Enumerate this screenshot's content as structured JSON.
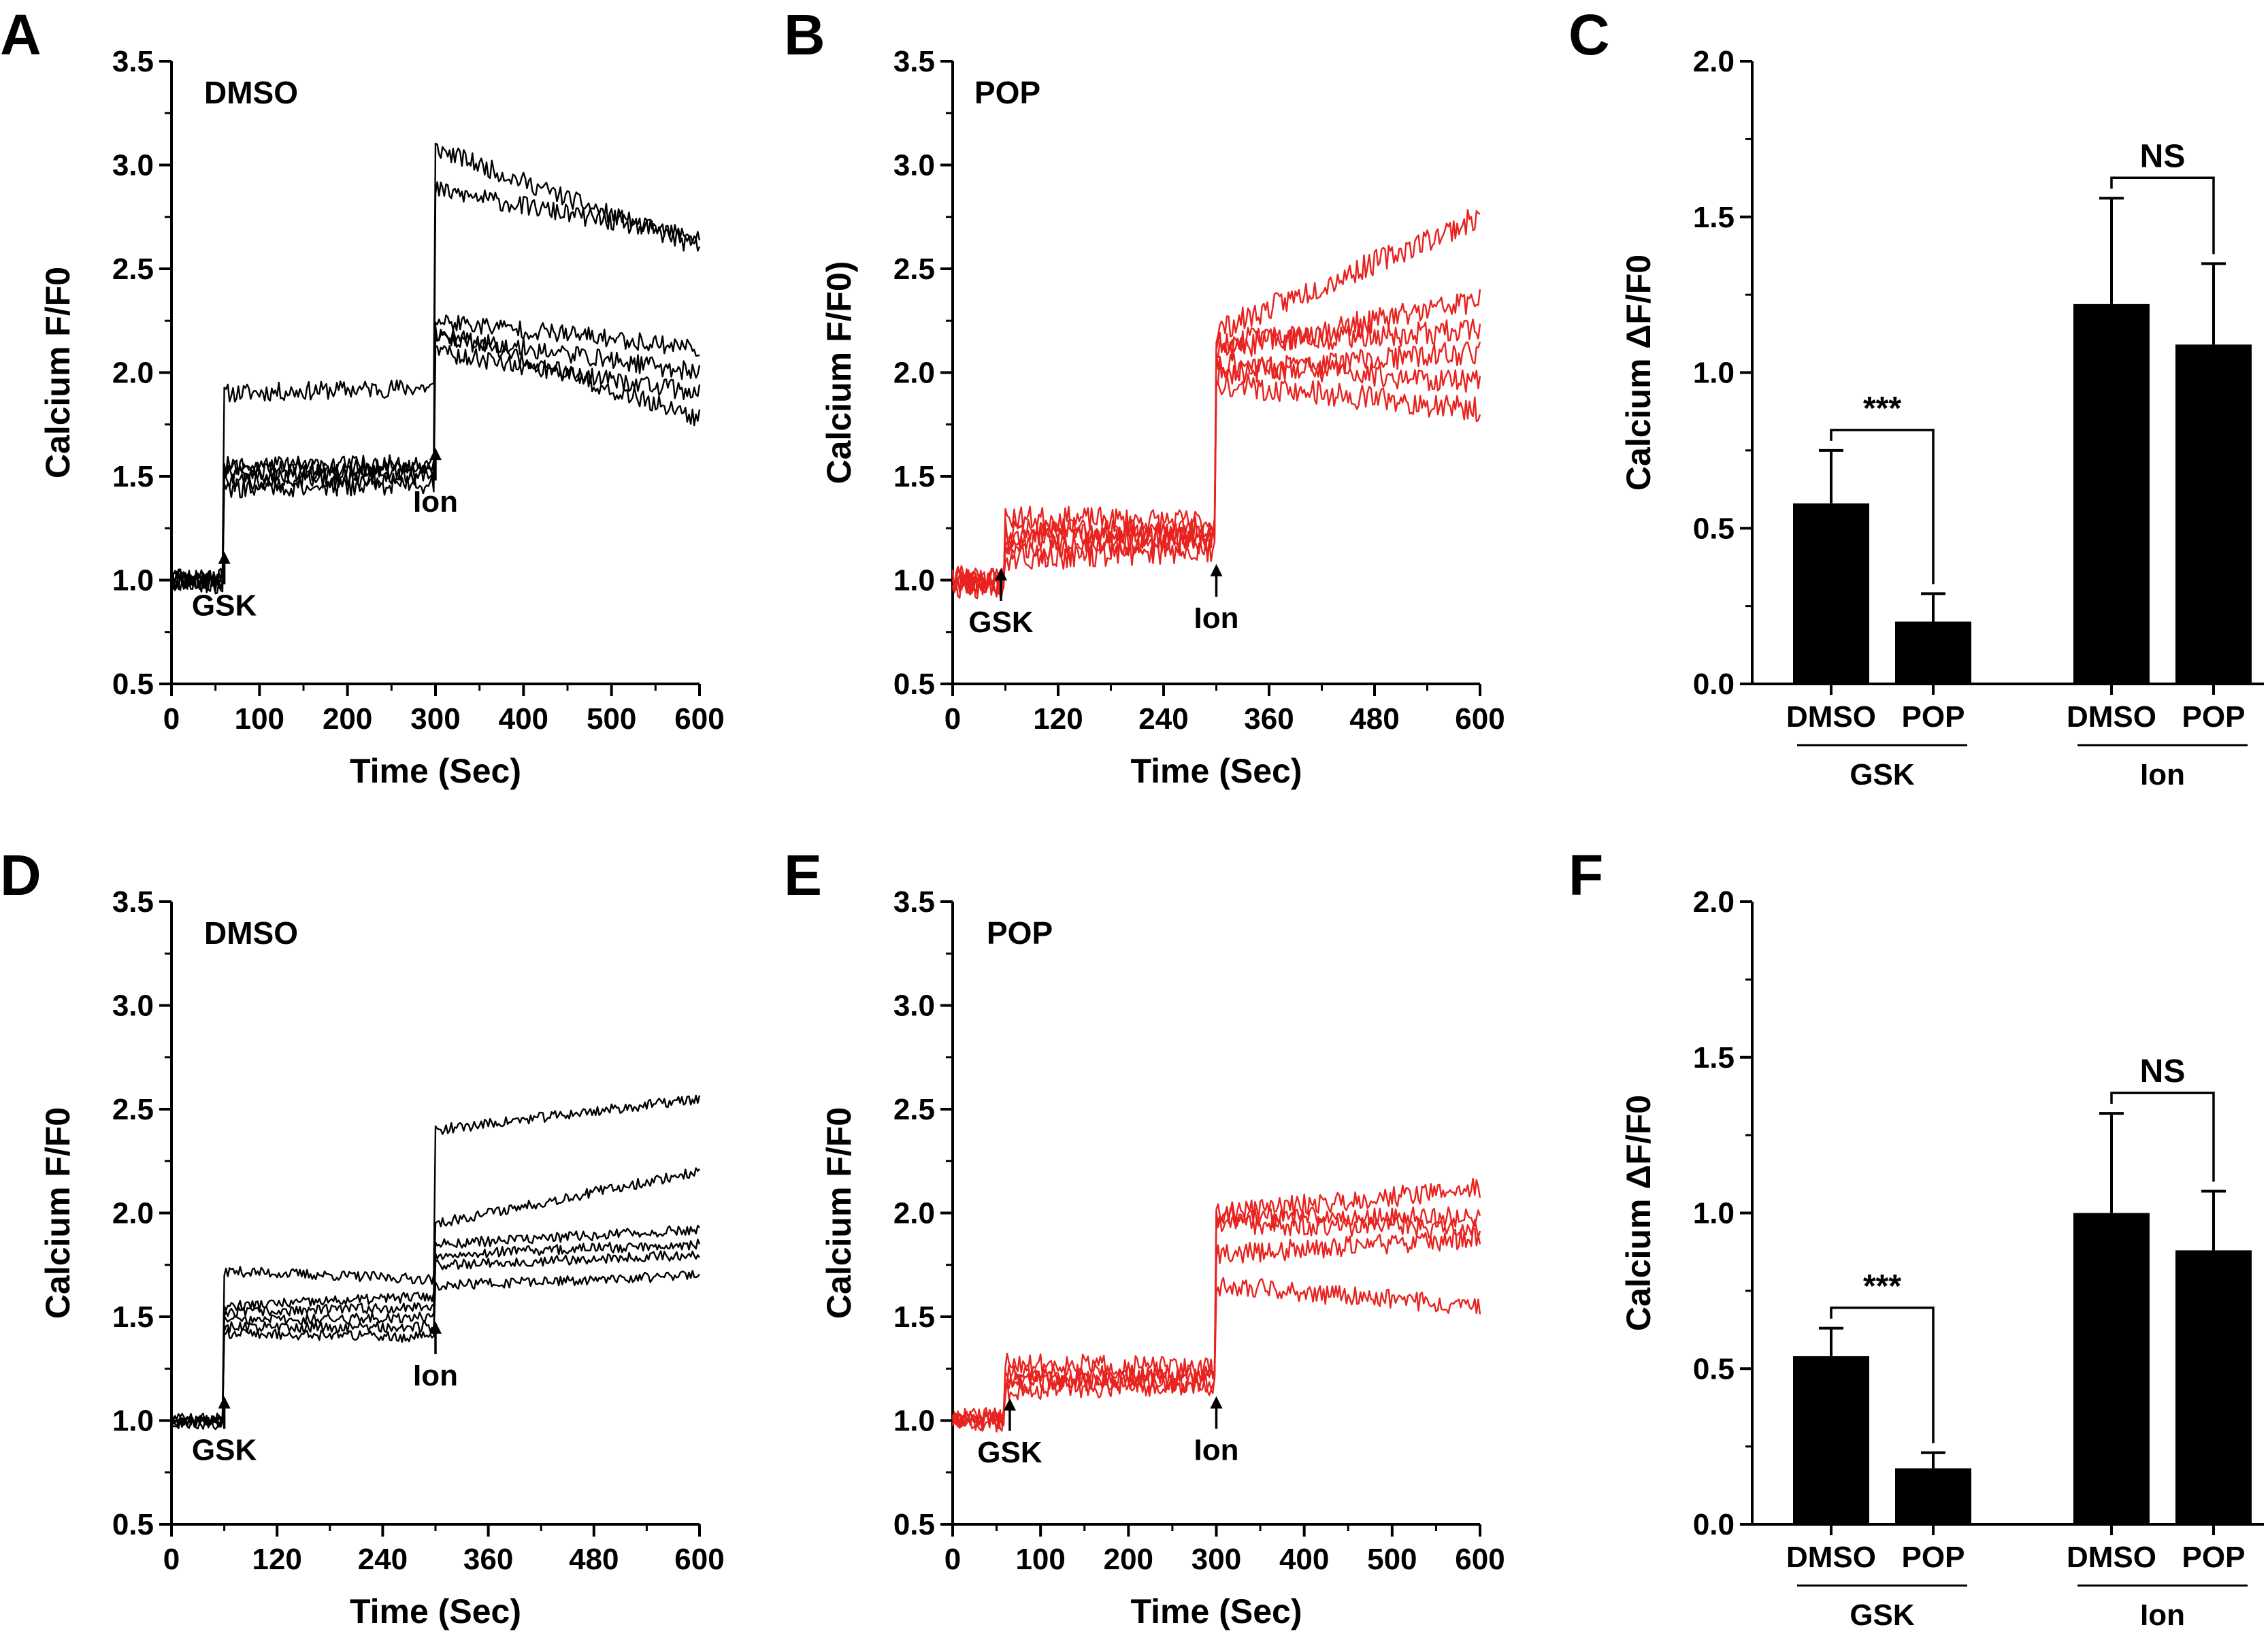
{
  "colors": {
    "black": "#000000",
    "red": "#e8231f",
    "background": "#ffffff"
  },
  "panels": [
    {
      "id": "A",
      "label": "A",
      "type": "line",
      "inset_label": "DMSO",
      "color": "#000000",
      "ylabel": "Calcium  F/F0",
      "xlabel": "Time (Sec)",
      "xlim": [
        0,
        600
      ],
      "ylim": [
        0.5,
        3.5
      ],
      "xticks": [
        "0",
        "100",
        "200",
        "300",
        "400",
        "500",
        "600"
      ],
      "xtick_values": [
        0,
        100,
        200,
        300,
        400,
        500,
        600
      ],
      "yticks": [
        "0.5",
        "1.0",
        "1.5",
        "2.0",
        "2.5",
        "3.0",
        "3.5"
      ],
      "ytick_values": [
        0.5,
        1.0,
        1.5,
        2.0,
        2.5,
        3.0,
        3.5
      ],
      "noise": 0.045,
      "seed": 11,
      "traces": [
        {
          "base": 1.02,
          "gsk": 1.9,
          "gsk_end": 1.93,
          "ion": 3.08,
          "ion_end": 2.6
        },
        {
          "base": 1.0,
          "gsk": 1.55,
          "gsk_end": 1.56,
          "ion": 2.88,
          "ion_end": 2.65
        },
        {
          "base": 0.99,
          "gsk": 1.5,
          "gsk_end": 1.52,
          "ion": 2.25,
          "ion_end": 2.12
        },
        {
          "base": 1.01,
          "gsk": 1.47,
          "gsk_end": 1.5,
          "ion": 2.18,
          "ion_end": 2.0
        },
        {
          "base": 0.98,
          "gsk": 1.44,
          "gsk_end": 1.46,
          "ion": 2.1,
          "ion_end": 1.9
        },
        {
          "base": 1.0,
          "gsk": 1.52,
          "gsk_end": 1.55,
          "ion": 2.2,
          "ion_end": 1.78
        }
      ],
      "annotations": [
        {
          "text": "GSK",
          "x": 60,
          "y": 0.98
        },
        {
          "text": "Ion",
          "x": 300,
          "y": 1.48
        }
      ]
    },
    {
      "id": "B",
      "label": "B",
      "type": "line",
      "inset_label": "POP",
      "color": "#e8231f",
      "ylabel": "Calcium  F/F0)",
      "xlabel": "Time (Sec)",
      "xlim": [
        0,
        600
      ],
      "ylim": [
        0.5,
        3.5
      ],
      "xticks": [
        "0",
        "120",
        "240",
        "360",
        "480",
        "600"
      ],
      "xtick_values": [
        0,
        120,
        240,
        360,
        480,
        600
      ],
      "yticks": [
        "0.5",
        "1.0",
        "1.5",
        "2.0",
        "2.5",
        "3.0",
        "3.5"
      ],
      "ytick_values": [
        0.5,
        1.0,
        1.5,
        2.0,
        2.5,
        3.0,
        3.5
      ],
      "noise": 0.06,
      "seed": 23,
      "traces": [
        {
          "base": 1.0,
          "gsk": 1.3,
          "gsk_end": 1.28,
          "ion": 2.2,
          "ion_end": 2.75
        },
        {
          "base": 0.98,
          "gsk": 1.22,
          "gsk_end": 1.25,
          "ion": 2.1,
          "ion_end": 2.35
        },
        {
          "base": 1.01,
          "gsk": 1.18,
          "gsk_end": 1.22,
          "ion": 2.0,
          "ion_end": 2.1
        },
        {
          "base": 0.99,
          "gsk": 1.15,
          "gsk_end": 1.18,
          "ion": 2.05,
          "ion_end": 1.95
        },
        {
          "base": 1.0,
          "gsk": 1.1,
          "gsk_end": 1.15,
          "ion": 1.95,
          "ion_end": 1.82
        },
        {
          "base": 0.97,
          "gsk": 1.25,
          "gsk_end": 1.2,
          "ion": 2.15,
          "ion_end": 2.2
        }
      ],
      "annotations": [
        {
          "text": "GSK",
          "x": 55,
          "y": 0.9
        },
        {
          "text": "Ion",
          "x": 300,
          "y": 0.92
        }
      ]
    },
    {
      "id": "C",
      "label": "C",
      "type": "bar",
      "ylabel": "Calcium  ΔF/F0",
      "ylim": [
        0.0,
        2.0
      ],
      "yticks": [
        "0.0",
        "0.5",
        "1.0",
        "1.5",
        "2.0"
      ],
      "ytick_values": [
        0.0,
        0.5,
        1.0,
        1.5,
        2.0
      ],
      "groups": [
        {
          "name": "GSK",
          "bars": [
            {
              "label": "DMSO",
              "value": 0.58,
              "error": 0.17
            },
            {
              "label": "POP",
              "value": 0.2,
              "error": 0.09
            }
          ],
          "significance": "***"
        },
        {
          "name": "Ion",
          "bars": [
            {
              "label": "DMSO",
              "value": 1.22,
              "error": 0.34
            },
            {
              "label": "POP",
              "value": 1.09,
              "error": 0.26
            }
          ],
          "significance": "NS"
        }
      ]
    },
    {
      "id": "D",
      "label": "D",
      "type": "line",
      "inset_label": "DMSO",
      "color": "#000000",
      "ylabel": "Calcium  F/F0",
      "xlabel": "Time (Sec)",
      "xlim": [
        0,
        600
      ],
      "ylim": [
        0.5,
        3.5
      ],
      "xticks": [
        "0",
        "120",
        "240",
        "360",
        "480",
        "600"
      ],
      "xtick_values": [
        0,
        120,
        240,
        360,
        480,
        600
      ],
      "yticks": [
        "0.5",
        "1.0",
        "1.5",
        "2.0",
        "2.5",
        "3.0",
        "3.5"
      ],
      "ytick_values": [
        0.5,
        1.0,
        1.5,
        2.0,
        2.5,
        3.0,
        3.5
      ],
      "noise": 0.025,
      "seed": 37,
      "traces": [
        {
          "base": 1.0,
          "gsk": 1.72,
          "gsk_end": 1.68,
          "ion": 2.4,
          "ion_end": 2.55
        },
        {
          "base": 1.01,
          "gsk": 1.55,
          "gsk_end": 1.6,
          "ion": 1.95,
          "ion_end": 2.2
        },
        {
          "base": 0.99,
          "gsk": 1.52,
          "gsk_end": 1.55,
          "ion": 1.85,
          "ion_end": 1.92
        },
        {
          "base": 1.0,
          "gsk": 1.48,
          "gsk_end": 1.5,
          "ion": 1.8,
          "ion_end": 1.85
        },
        {
          "base": 0.98,
          "gsk": 1.45,
          "gsk_end": 1.45,
          "ion": 1.75,
          "ion_end": 1.8
        },
        {
          "base": 1.0,
          "gsk": 1.42,
          "gsk_end": 1.4,
          "ion": 1.65,
          "ion_end": 1.7
        }
      ],
      "annotations": [
        {
          "text": "GSK",
          "x": 60,
          "y": 0.96
        },
        {
          "text": "Ion",
          "x": 300,
          "y": 1.32
        }
      ]
    },
    {
      "id": "E",
      "label": "E",
      "type": "line",
      "inset_label": "POP",
      "color": "#e8231f",
      "ylabel": "Calcium  F/F0",
      "xlabel": "Time (Sec)",
      "xlim": [
        0,
        600
      ],
      "ylim": [
        0.5,
        3.5
      ],
      "xticks": [
        "0",
        "100",
        "200",
        "300",
        "400",
        "500",
        "600"
      ],
      "xtick_values": [
        0,
        100,
        200,
        300,
        400,
        500,
        600
      ],
      "yticks": [
        "0.5",
        "1.0",
        "1.5",
        "2.0",
        "2.5",
        "3.0",
        "3.5"
      ],
      "ytick_values": [
        0.5,
        1.0,
        1.5,
        2.0,
        2.5,
        3.0,
        3.5
      ],
      "noise": 0.05,
      "seed": 51,
      "traces": [
        {
          "base": 1.0,
          "gsk": 1.28,
          "gsk_end": 1.25,
          "ion": 2.0,
          "ion_end": 2.12
        },
        {
          "base": 1.02,
          "gsk": 1.22,
          "gsk_end": 1.22,
          "ion": 1.98,
          "ion_end": 1.98
        },
        {
          "base": 0.99,
          "gsk": 1.18,
          "gsk_end": 1.2,
          "ion": 1.95,
          "ion_end": 1.92
        },
        {
          "base": 1.0,
          "gsk": 1.15,
          "gsk_end": 1.17,
          "ion": 1.8,
          "ion_end": 1.88
        },
        {
          "base": 1.01,
          "gsk": 1.2,
          "gsk_end": 1.18,
          "ion": 1.65,
          "ion_end": 1.55
        }
      ],
      "annotations": [
        {
          "text": "GSK",
          "x": 65,
          "y": 0.95
        },
        {
          "text": "Ion",
          "x": 300,
          "y": 0.96
        }
      ]
    },
    {
      "id": "F",
      "label": "F",
      "type": "bar",
      "ylabel": "Calcium  ΔF/F0",
      "ylim": [
        0.0,
        2.0
      ],
      "yticks": [
        "0.0",
        "0.5",
        "1.0",
        "1.5",
        "2.0"
      ],
      "ytick_values": [
        0.0,
        0.5,
        1.0,
        1.5,
        2.0
      ],
      "groups": [
        {
          "name": "GSK",
          "bars": [
            {
              "label": "DMSO",
              "value": 0.54,
              "error": 0.09
            },
            {
              "label": "POP",
              "value": 0.18,
              "error": 0.05
            }
          ],
          "significance": "***"
        },
        {
          "name": "Ion",
          "bars": [
            {
              "label": "DMSO",
              "value": 1.0,
              "error": 0.32
            },
            {
              "label": "POP",
              "value": 0.88,
              "error": 0.19
            }
          ],
          "significance": "NS"
        }
      ]
    }
  ],
  "chart_data": [
    {
      "type": "line",
      "panel": "A",
      "title": "DMSO",
      "xlabel": "Time (Sec)",
      "ylabel": "Calcium  F/F0",
      "xlim": [
        0,
        600
      ],
      "ylim": [
        0.5,
        3.5
      ],
      "events": [
        {
          "name": "GSK",
          "x": 60
        },
        {
          "name": "Ion",
          "x": 300
        }
      ],
      "series": [
        {
          "name": "trace 1",
          "levels": [
            1.02,
            1.9,
            3.08,
            2.6
          ]
        },
        {
          "name": "trace 2",
          "levels": [
            1.0,
            1.55,
            2.88,
            2.65
          ]
        },
        {
          "name": "trace 3",
          "levels": [
            0.99,
            1.5,
            2.25,
            2.12
          ]
        },
        {
          "name": "trace 4",
          "levels": [
            1.01,
            1.47,
            2.18,
            2.0
          ]
        },
        {
          "name": "trace 5",
          "levels": [
            0.98,
            1.44,
            2.1,
            1.9
          ]
        },
        {
          "name": "trace 6",
          "levels": [
            1.0,
            1.52,
            2.2,
            1.78
          ]
        }
      ]
    },
    {
      "type": "line",
      "panel": "B",
      "title": "POP",
      "xlabel": "Time (Sec)",
      "ylabel": "Calcium  F/F0)",
      "xlim": [
        0,
        600
      ],
      "ylim": [
        0.5,
        3.5
      ],
      "events": [
        {
          "name": "GSK",
          "x": 60
        },
        {
          "name": "Ion",
          "x": 300
        }
      ],
      "series": [
        {
          "name": "trace 1",
          "levels": [
            1.0,
            1.3,
            2.2,
            2.75
          ]
        },
        {
          "name": "trace 2",
          "levels": [
            0.98,
            1.22,
            2.1,
            2.35
          ]
        },
        {
          "name": "trace 3",
          "levels": [
            1.01,
            1.18,
            2.0,
            2.1
          ]
        },
        {
          "name": "trace 4",
          "levels": [
            0.99,
            1.15,
            2.05,
            1.95
          ]
        },
        {
          "name": "trace 5",
          "levels": [
            1.0,
            1.1,
            1.95,
            1.82
          ]
        },
        {
          "name": "trace 6",
          "levels": [
            0.97,
            1.25,
            2.15,
            2.2
          ]
        }
      ]
    },
    {
      "type": "bar",
      "panel": "C",
      "ylabel": "Calcium  ΔF/F0",
      "ylim": [
        0,
        2.0
      ],
      "categories": [
        "GSK DMSO",
        "GSK POP",
        "Ion DMSO",
        "Ion POP"
      ],
      "values": [
        0.58,
        0.2,
        1.22,
        1.09
      ],
      "errors": [
        0.17,
        0.09,
        0.34,
        0.26
      ],
      "annotations": [
        "***",
        "NS"
      ]
    },
    {
      "type": "line",
      "panel": "D",
      "title": "DMSO",
      "xlabel": "Time (Sec)",
      "ylabel": "Calcium  F/F0",
      "xlim": [
        0,
        600
      ],
      "ylim": [
        0.5,
        3.5
      ],
      "events": [
        {
          "name": "GSK",
          "x": 60
        },
        {
          "name": "Ion",
          "x": 300
        }
      ],
      "series": [
        {
          "name": "trace 1",
          "levels": [
            1.0,
            1.72,
            2.4,
            2.55
          ]
        },
        {
          "name": "trace 2",
          "levels": [
            1.01,
            1.55,
            1.95,
            2.2
          ]
        },
        {
          "name": "trace 3",
          "levels": [
            0.99,
            1.52,
            1.85,
            1.92
          ]
        },
        {
          "name": "trace 4",
          "levels": [
            1.0,
            1.48,
            1.8,
            1.85
          ]
        },
        {
          "name": "trace 5",
          "levels": [
            0.98,
            1.45,
            1.75,
            1.8
          ]
        },
        {
          "name": "trace 6",
          "levels": [
            1.0,
            1.42,
            1.65,
            1.7
          ]
        }
      ]
    },
    {
      "type": "line",
      "panel": "E",
      "title": "POP",
      "xlabel": "Time (Sec)",
      "ylabel": "Calcium  F/F0",
      "xlim": [
        0,
        600
      ],
      "ylim": [
        0.5,
        3.5
      ],
      "events": [
        {
          "name": "GSK",
          "x": 60
        },
        {
          "name": "Ion",
          "x": 300
        }
      ],
      "series": [
        {
          "name": "trace 1",
          "levels": [
            1.0,
            1.28,
            2.0,
            2.12
          ]
        },
        {
          "name": "trace 2",
          "levels": [
            1.02,
            1.22,
            1.98,
            1.98
          ]
        },
        {
          "name": "trace 3",
          "levels": [
            0.99,
            1.18,
            1.95,
            1.92
          ]
        },
        {
          "name": "trace 4",
          "levels": [
            1.0,
            1.15,
            1.8,
            1.88
          ]
        },
        {
          "name": "trace 5",
          "levels": [
            1.01,
            1.2,
            1.65,
            1.55
          ]
        }
      ]
    },
    {
      "type": "bar",
      "panel": "F",
      "ylabel": "Calcium  ΔF/F0",
      "ylim": [
        0,
        2.0
      ],
      "categories": [
        "GSK DMSO",
        "GSK POP",
        "Ion DMSO",
        "Ion POP"
      ],
      "values": [
        0.54,
        0.18,
        1.0,
        0.88
      ],
      "errors": [
        0.09,
        0.05,
        0.32,
        0.19
      ],
      "annotations": [
        "***",
        "NS"
      ]
    }
  ]
}
